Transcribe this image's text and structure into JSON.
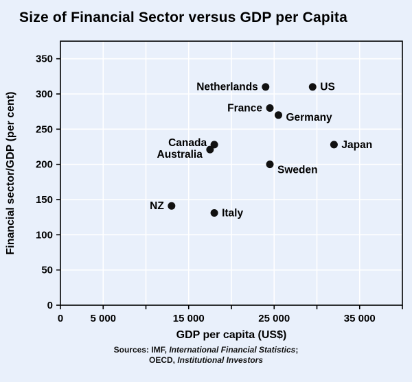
{
  "title": "Size of Financial Sector versus GDP per Capita",
  "chart_data": {
    "type": "scatter",
    "title": "Size of Financial Sector versus GDP per Capita",
    "xlabel": "GDP per capita (US$)",
    "ylabel": "Financial sector/GDP (per cent)",
    "xlim": [
      0,
      40000
    ],
    "ylim": [
      0,
      375
    ],
    "grid": true,
    "legend": "none",
    "x_grid_step": 5000,
    "y_grid_step": 50,
    "x_tick_labels": [
      {
        "value": 0,
        "label": "0"
      },
      {
        "value": 5000,
        "label": "5 000"
      },
      {
        "value": 15000,
        "label": "15 000"
      },
      {
        "value": 25000,
        "label": "25 000"
      },
      {
        "value": 35000,
        "label": "35 000"
      }
    ],
    "y_ticks": [
      0,
      50,
      100,
      150,
      200,
      250,
      300,
      350
    ],
    "points": [
      {
        "label": "Netherlands",
        "x": 24000,
        "y": 310,
        "side": "left",
        "dy": 5
      },
      {
        "label": "US",
        "x": 29500,
        "y": 310,
        "side": "right",
        "dy": 5
      },
      {
        "label": "France",
        "x": 24500,
        "y": 280,
        "side": "left",
        "dy": 5
      },
      {
        "label": "Germany",
        "x": 25500,
        "y": 270,
        "side": "right",
        "dy": 8
      },
      {
        "label": "Canada",
        "x": 18000,
        "y": 228,
        "side": "left",
        "dy": 2
      },
      {
        "label": "Australia",
        "x": 17500,
        "y": 221,
        "side": "left",
        "dy": 12
      },
      {
        "label": "Japan",
        "x": 32000,
        "y": 228,
        "side": "right",
        "dy": 5
      },
      {
        "label": "Sweden",
        "x": 24500,
        "y": 200,
        "side": "right",
        "dy": 13
      },
      {
        "label": "NZ",
        "x": 13000,
        "y": 141,
        "side": "left",
        "dy": 5
      },
      {
        "label": "Italy",
        "x": 18000,
        "y": 131,
        "side": "right",
        "dy": 5
      }
    ]
  },
  "sources": {
    "line1_prefix": "Sources: IMF, ",
    "line1_italic": "International Financial Statistics",
    "line1_suffix": ";",
    "line2_prefix": "OECD, ",
    "line2_italic": "Institutional Investors"
  },
  "colors": {
    "background": "#e9f0fb",
    "grid": "#ffffff",
    "axis": "#000000",
    "point": "#111111",
    "text": "#000000"
  }
}
